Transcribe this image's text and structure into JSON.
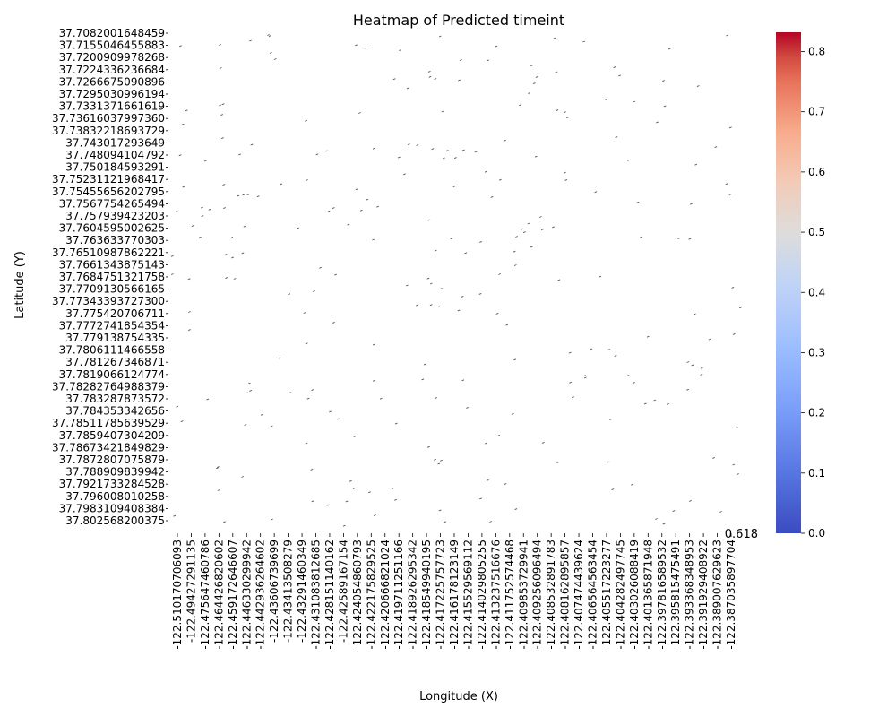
{
  "chart_data": {
    "type": "heatmap",
    "title": "Heatmap of Predicted timeint",
    "xlabel": "Longitude (X)",
    "ylabel": "Latitude (Y)",
    "x_ticks": [
      "-122.510170706093",
      "-122.49427291135",
      "-122.475647460786",
      "-122.464426820602",
      "-122.459172646607",
      "-122.446330299942",
      "-122.442936264602",
      "-122.43606739699",
      "-122.43413508279",
      "-122.43291460349",
      "-122.431083812685",
      "-122.428151140162",
      "-122.42589167154",
      "-122.424054860793",
      "-122.422175829525",
      "-122.420666821024",
      "-122.419711251166",
      "-122.418926295342",
      "-122.418549940195",
      "-122.417225757723",
      "-122.416178123149",
      "-122.415529569112",
      "-122.414029805255",
      "-122.413237516676",
      "-122.411752574468",
      "-122.409853729941",
      "-122.409256096494",
      "-122.408532891783",
      "-122.408162895857",
      "-122.407474439624",
      "-122.406564563454",
      "-122.405517223277",
      "-122.404282497745",
      "-122.403026088419",
      "-122.401365871948",
      "-122.397816589532",
      "-122.395815475491",
      "-122.393368348953",
      "-122.391929408922",
      "-122.389007629623",
      "-122.387035897704"
    ],
    "y_ticks": [
      "37.7082001648459",
      "37.7155046455883",
      "37.7200909978268",
      "37.7224336236684",
      "37.7266675090896",
      "37.7295030996194",
      "37.7331371661619",
      "37.73616037997360",
      "37.73832218693729",
      "37.743017293649",
      "37.748094104792",
      "37.750184593291",
      "37.75231121968417",
      "37.75455656202795",
      "37.7567754265494",
      "37.757939423203",
      "37.7604595002625",
      "37.763633770303",
      "37.76510987862221",
      "37.7661343875143",
      "37.7684751321758",
      "37.7709130566165",
      "37.77343393727300",
      "37.775420706711",
      "37.7772741854354",
      "37.779138754335",
      "37.7806111466558",
      "37.781267346871",
      "37.7819066124774",
      "37.78282764988379",
      "37.783287873572",
      "37.784353342656",
      "37.78511785639529",
      "37.7859407304209",
      "37.78673421849829",
      "37.7872807075879",
      "37.788909839942",
      "37.7921733284528",
      "37.796008010258",
      "37.7983109408384",
      "37.802568200375"
    ],
    "value_range": [
      0,
      0.832
    ],
    "colorbar_ticks": [
      "0.0",
      "0.1",
      "0.2",
      "0.3",
      "0.4",
      "0.5",
      "0.6",
      "0.7",
      "0.8"
    ],
    "colormap": "coolwarm",
    "colors": {
      "low": "#3b4cc0",
      "mid": "#dddddd",
      "high": "#b40426"
    },
    "annotation": "0.618",
    "note_cells": "Cells are almost entirely blank (NaN); only tiny scattered marks visible."
  }
}
